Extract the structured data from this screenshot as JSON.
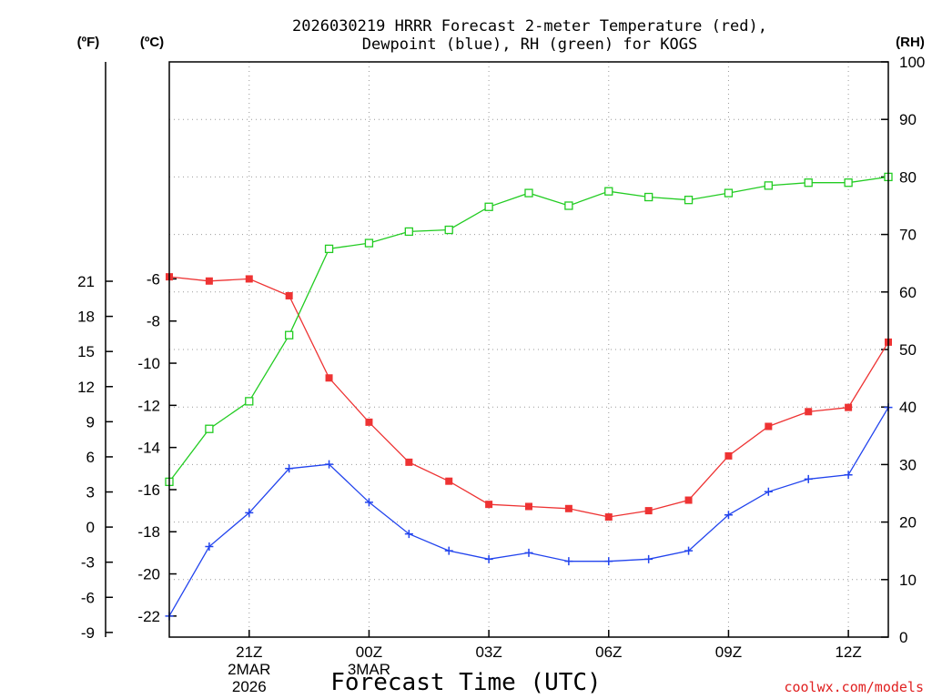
{
  "chart_data": {
    "type": "line",
    "title": [
      "2026030219 HRRR Forecast 2-meter Temperature (red),",
      "Dewpoint (blue), RH (green) for KOGS"
    ],
    "xlabel": "Forecast Time (UTC)",
    "credit": "coolwx.com/models",
    "units": {
      "fahrenheit": "(ºF)",
      "celsius": "(ºC)",
      "rh": "(RH)"
    },
    "x_hours": [
      19,
      20,
      21,
      22,
      23,
      24,
      25,
      26,
      27,
      28,
      29,
      30,
      31,
      32,
      33,
      34,
      35,
      36,
      37
    ],
    "x_ticks": [
      {
        "hour": 21,
        "label": "21Z",
        "date": "2MAR",
        "year": "2026"
      },
      {
        "hour": 24,
        "label": "00Z",
        "date": "3MAR"
      },
      {
        "hour": 27,
        "label": "03Z"
      },
      {
        "hour": 30,
        "label": "06Z"
      },
      {
        "hour": 33,
        "label": "09Z"
      },
      {
        "hour": 36,
        "label": "12Z"
      }
    ],
    "y_celsius": {
      "range": [
        -23,
        4.3
      ],
      "ticks": [
        "-22",
        "-20",
        "-18",
        "-16",
        "-14",
        "-12",
        "-10",
        "-8",
        "-6"
      ]
    },
    "y_fahrenheit": {
      "ticks": [
        "-9",
        "-6",
        "-3",
        "0",
        "3",
        "6",
        "9",
        "12",
        "15",
        "18",
        "21"
      ]
    },
    "y_rh": {
      "range": [
        0,
        100
      ],
      "ticks": [
        "0",
        "10",
        "20",
        "30",
        "40",
        "50",
        "60",
        "70",
        "80",
        "90",
        "100"
      ]
    },
    "series": [
      {
        "name": "Temperature",
        "axis": "celsius",
        "color": "#ee3333",
        "marker": "filled-square",
        "values": [
          -5.9,
          -6.1,
          -6.0,
          -6.8,
          -10.7,
          -12.8,
          -14.7,
          -15.6,
          -16.7,
          -16.8,
          -16.9,
          -17.3,
          -17.0,
          -16.5,
          -14.4,
          -13.0,
          -12.3,
          -12.1,
          -9.0
        ]
      },
      {
        "name": "Dewpoint",
        "axis": "celsius",
        "color": "#2244ee",
        "marker": "plus",
        "values": [
          -22.0,
          -18.7,
          -17.1,
          -15.0,
          -14.8,
          -16.6,
          -18.1,
          -18.9,
          -19.3,
          -19.0,
          -19.4,
          -19.4,
          -19.3,
          -18.9,
          -17.2,
          -16.1,
          -15.5,
          -15.3,
          -12.1
        ]
      },
      {
        "name": "RH",
        "axis": "rh",
        "color": "#22cc22",
        "marker": "open-square",
        "values": [
          27.0,
          36.2,
          41.0,
          52.5,
          67.5,
          68.5,
          70.5,
          70.8,
          74.8,
          77.2,
          75.0,
          77.5,
          76.5,
          76.0,
          77.2,
          78.5,
          79.0,
          79.0,
          80.0
        ]
      }
    ]
  }
}
